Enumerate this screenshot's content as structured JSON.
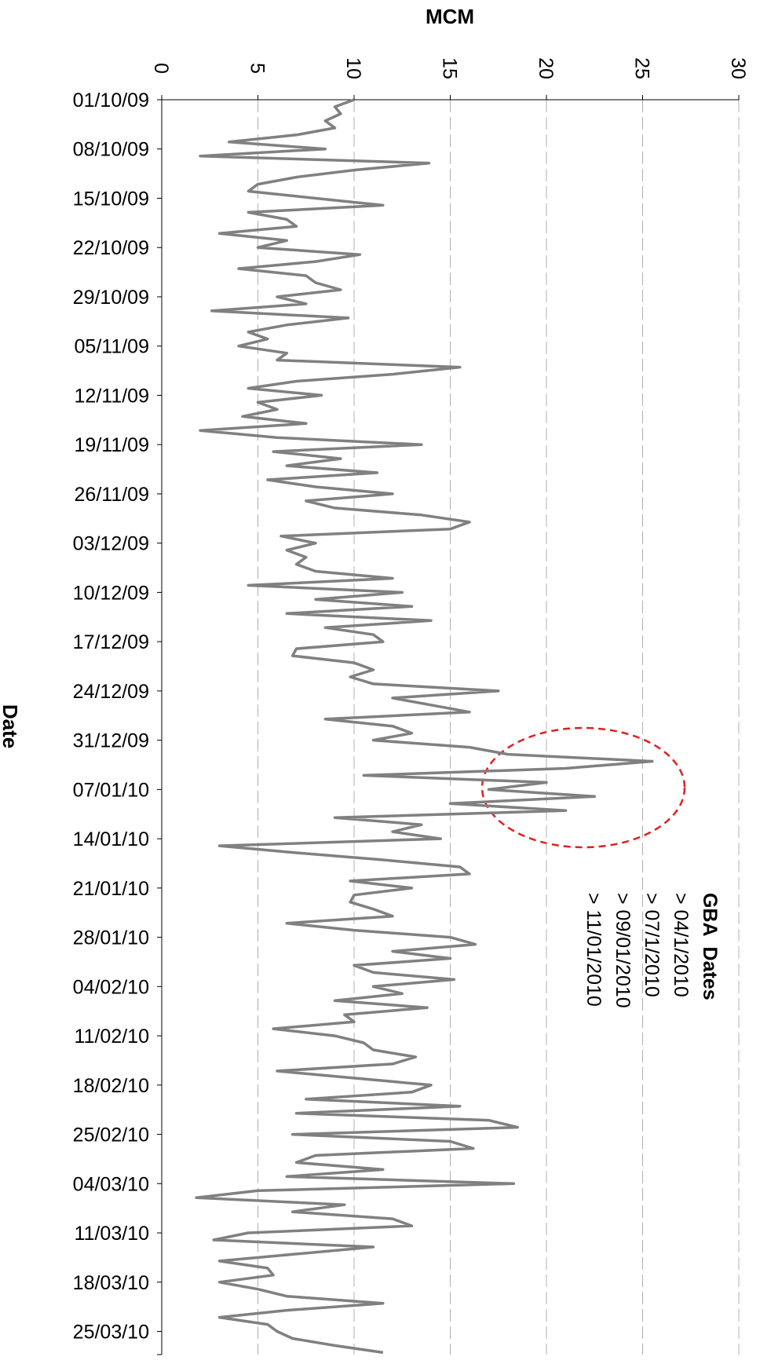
{
  "chart_data": {
    "type": "line",
    "category_axis": "vertical",
    "value_axis_label": "MCM",
    "category_axis_label": "Date",
    "categories": [
      "01/10/09",
      null,
      null,
      null,
      null,
      null,
      null,
      "08/10/09",
      null,
      null,
      null,
      null,
      null,
      null,
      "15/10/09",
      null,
      null,
      null,
      null,
      null,
      null,
      "22/10/09",
      null,
      null,
      null,
      null,
      null,
      null,
      "29/10/09",
      null,
      null,
      null,
      null,
      null,
      null,
      "05/11/09",
      null,
      null,
      null,
      null,
      null,
      null,
      "12/11/09",
      null,
      null,
      null,
      null,
      null,
      null,
      "19/11/09",
      null,
      null,
      null,
      null,
      null,
      null,
      "26/11/09",
      null,
      null,
      null,
      null,
      null,
      null,
      "03/12/09",
      null,
      null,
      null,
      null,
      null,
      null,
      "10/12/09",
      null,
      null,
      null,
      null,
      null,
      null,
      "17/12/09",
      null,
      null,
      null,
      null,
      null,
      null,
      "24/12/09",
      null,
      null,
      null,
      null,
      null,
      null,
      "31/12/09",
      null,
      null,
      null,
      null,
      null,
      null,
      "07/01/10",
      null,
      null,
      null,
      null,
      null,
      null,
      "14/01/10",
      null,
      null,
      null,
      null,
      null,
      null,
      "21/01/10",
      null,
      null,
      null,
      null,
      null,
      null,
      "28/01/10",
      null,
      null,
      null,
      null,
      null,
      null,
      "04/02/10",
      null,
      null,
      null,
      null,
      null,
      null,
      "11/02/10",
      null,
      null,
      null,
      null,
      null,
      null,
      "18/02/10",
      null,
      null,
      null,
      null,
      null,
      null,
      "25/02/10",
      null,
      null,
      null,
      null,
      null,
      null,
      "04/03/10",
      null,
      null,
      null,
      null,
      null,
      null,
      "11/03/10",
      null,
      null,
      null,
      null,
      null,
      null,
      "18/03/10",
      null,
      null,
      null,
      null,
      null,
      null,
      "25/03/10",
      null,
      null,
      null
    ],
    "series": [
      {
        "color": "#808080",
        "values": [
          10,
          9,
          9.3,
          8.5,
          9,
          7,
          3.5,
          8.5,
          2,
          13.9,
          10,
          7,
          5,
          4.5,
          8,
          11.5,
          4.5,
          6.5,
          7,
          3,
          6.5,
          5,
          10.3,
          8,
          4,
          7.5,
          8,
          9.3,
          6,
          7.5,
          2.6,
          9.7,
          6.5,
          4.5,
          5.5,
          4,
          6.5,
          6,
          15.5,
          12,
          7,
          4.5,
          8.3,
          5,
          6,
          4.2,
          7.5,
          2,
          6,
          13.5,
          5.8,
          9.3,
          6.5,
          11.2,
          5.5,
          8,
          12,
          7.5,
          9,
          13.5,
          16,
          15,
          6.2,
          8,
          6.5,
          7.5,
          7,
          8,
          12,
          4.5,
          12.5,
          8,
          13,
          6.5,
          14,
          8.5,
          11,
          11.5,
          7,
          6.8,
          10,
          11,
          9.8,
          11,
          17.5,
          12,
          14,
          16,
          8.5,
          12,
          13,
          11,
          16,
          18,
          25.5,
          21,
          10.5,
          20,
          17,
          22.5,
          15,
          21,
          9,
          13.5,
          12,
          14.5,
          3,
          7,
          11.5,
          15.5,
          16,
          9.8,
          13,
          10,
          9.8,
          11,
          12,
          6.5,
          10,
          15,
          16.3,
          12,
          15,
          10,
          11,
          15.2,
          11,
          12.5,
          9,
          13.8,
          9.5,
          10,
          5.8,
          9,
          10.5,
          11,
          13.2,
          12,
          6,
          10,
          14,
          13,
          7.5,
          15.5,
          7,
          17,
          18.5,
          6.8,
          15,
          16.2,
          8,
          7,
          11.5,
          6.5,
          18.3,
          5,
          1.8,
          9.5,
          6.8,
          12,
          13,
          4.5,
          2.7,
          11,
          7,
          3,
          5.5,
          5.8,
          3,
          5,
          6.5,
          11.5,
          6.5,
          3,
          5.5,
          6,
          6.8,
          9,
          11.5
        ]
      }
    ],
    "xlim": [
      0,
      30
    ],
    "xticks": [
      0,
      5,
      10,
      15,
      20,
      25,
      30
    ],
    "grid": true,
    "annotation": {
      "title": "GBA  Dates",
      "color": "#1a7abf",
      "items": [
        "> 04/1/2010",
        "> 07/1/2010",
        "> 09/01/2010",
        "> 11/01/2010"
      ]
    }
  }
}
